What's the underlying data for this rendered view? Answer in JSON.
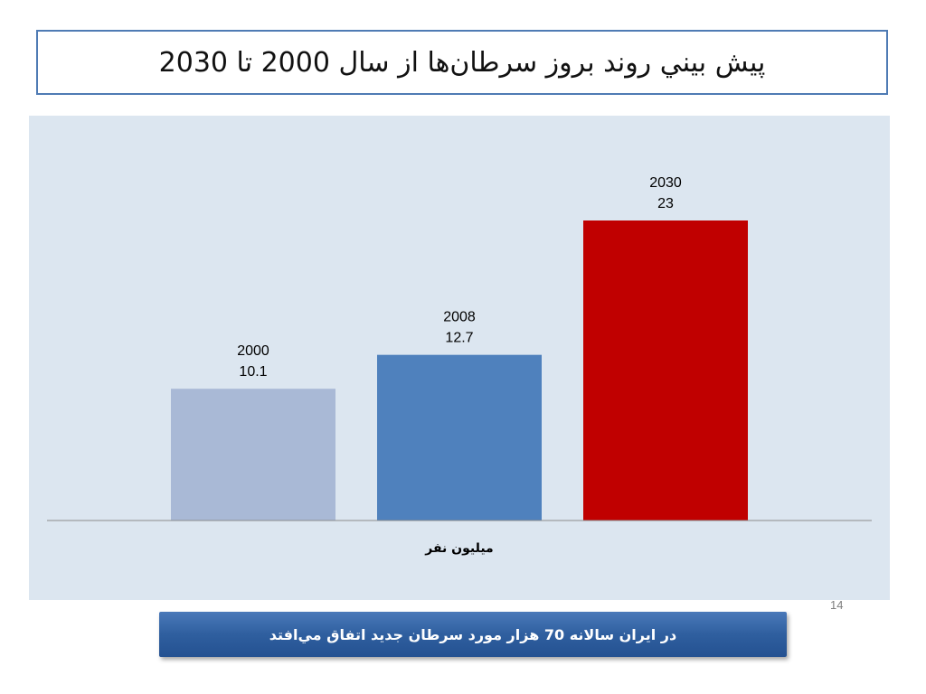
{
  "title": "پيش بيني روند بروز سرطان‌ها  از سال 2000 تا 2030",
  "chart_data": {
    "type": "bar",
    "categories": [
      "2000",
      "2008",
      "2030"
    ],
    "values": [
      10.1,
      12.7,
      23
    ],
    "xlabel": "ميليون نفر",
    "ylabel": "",
    "ylim": [
      0,
      25
    ],
    "grid": false,
    "legend": "none",
    "colors": [
      "#a9b9d6",
      "#4f81bd",
      "#c00000"
    ]
  },
  "page_number": "14",
  "footer": {
    "text": "در ايران سالانه 70 هزار مورد سرطان جديد اتفاق مي‌افتد"
  },
  "colors": {
    "title_border": "#4f7bb4",
    "chart_background": "#dce6f0",
    "banner": "#2f5f9f"
  }
}
